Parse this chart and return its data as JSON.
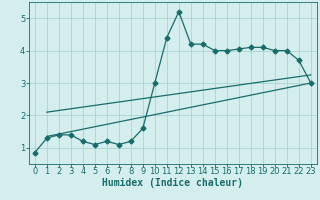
{
  "xlabel": "Humidex (Indice chaleur)",
  "background_color": "#d4eeed",
  "grid_color": "#aad4d0",
  "line_color": "#1a6b6b",
  "xlim": [
    -0.5,
    23.5
  ],
  "ylim": [
    0.5,
    5.5
  ],
  "xticks": [
    0,
    1,
    2,
    3,
    4,
    5,
    6,
    7,
    8,
    9,
    10,
    11,
    12,
    13,
    14,
    15,
    16,
    17,
    18,
    19,
    20,
    21,
    22,
    23
  ],
  "yticks": [
    1,
    2,
    3,
    4,
    5
  ],
  "main_x": [
    0,
    1,
    2,
    3,
    4,
    5,
    6,
    7,
    8,
    9,
    10,
    11,
    12,
    13,
    14,
    15,
    16,
    17,
    18,
    19,
    20,
    21,
    22,
    23
  ],
  "main_y": [
    0.85,
    1.3,
    1.4,
    1.4,
    1.2,
    1.1,
    1.2,
    1.1,
    1.2,
    1.6,
    3.0,
    4.4,
    5.2,
    4.2,
    4.2,
    4.0,
    4.0,
    4.05,
    4.1,
    4.1,
    4.0,
    4.0,
    3.7,
    3.0
  ],
  "line1_x": [
    1,
    23
  ],
  "line1_y": [
    1.35,
    3.0
  ],
  "line2_x": [
    1,
    23
  ],
  "line2_y": [
    2.1,
    3.25
  ],
  "marker_style": "D",
  "marker_size": 2.5,
  "line_width": 0.9,
  "tick_fontsize": 6,
  "label_fontsize": 7
}
